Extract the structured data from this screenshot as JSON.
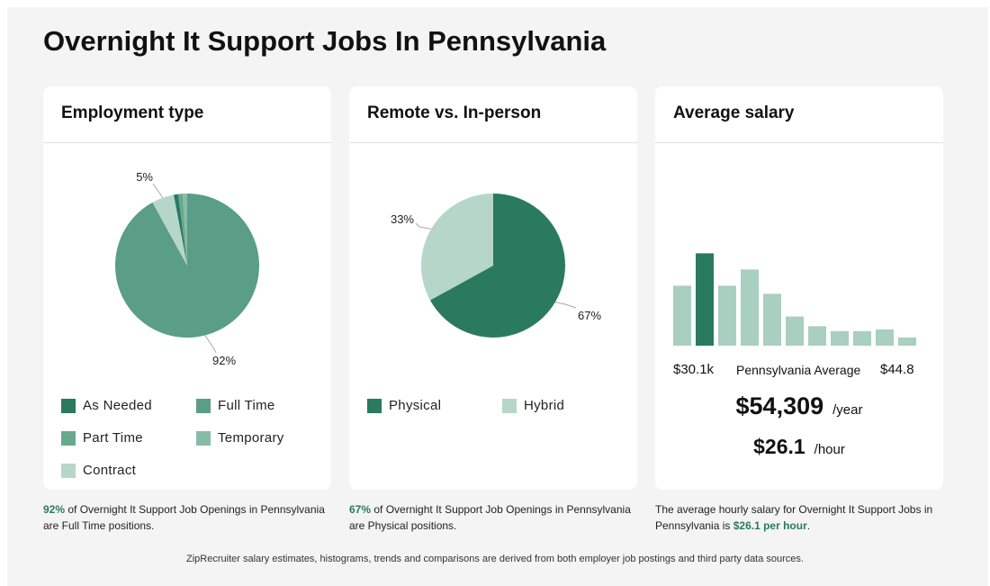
{
  "page": {
    "title": "Overnight It Support Jobs In Pennsylvania"
  },
  "chart_data": [
    {
      "type": "pie",
      "title": "Employment type",
      "slices": [
        {
          "label": "Full Time",
          "value": 92,
          "color": "#5a9e87"
        },
        {
          "label": "Contract",
          "value": 5,
          "color": "#b7d6ca"
        },
        {
          "label": "As Needed",
          "value": 1,
          "color": "#2a7a5f"
        },
        {
          "label": "Part Time",
          "value": 1,
          "color": "#6aa88f"
        },
        {
          "label": "Temporary",
          "value": 1,
          "color": "#88bba7"
        }
      ],
      "data_labels": [
        {
          "slice": "Contract",
          "text": "5%"
        },
        {
          "slice": "Full Time",
          "text": "92%"
        }
      ],
      "legend": [
        {
          "label": "As Needed",
          "color": "#2a7a5f"
        },
        {
          "label": "Full Time",
          "color": "#5a9e87"
        },
        {
          "label": "Part Time",
          "color": "#6aa88f"
        },
        {
          "label": "Temporary",
          "color": "#88bba7"
        },
        {
          "label": "Contract",
          "color": "#b7d6ca"
        }
      ]
    },
    {
      "type": "pie",
      "title": "Remote vs. In-person",
      "slices": [
        {
          "label": "Physical",
          "value": 67,
          "color": "#2a7a5f"
        },
        {
          "label": "Hybrid",
          "value": 33,
          "color": "#b7d6ca"
        }
      ],
      "data_labels": [
        {
          "slice": "Physical",
          "text": "67%"
        },
        {
          "slice": "Hybrid",
          "text": "33%"
        }
      ],
      "legend": [
        {
          "label": "Physical",
          "color": "#2a7a5f"
        },
        {
          "label": "Hybrid",
          "color": "#b7d6ca"
        }
      ]
    },
    {
      "type": "bar",
      "title": "Average salary",
      "values": [
        37,
        57,
        37,
        47,
        32,
        18,
        12,
        9,
        9,
        10,
        5
      ],
      "highlight_index": 1,
      "ylim": [
        0,
        60
      ],
      "bar_color": "#a8cfc0",
      "highlight_color": "#2a7a5f",
      "range_min_label": "$30.1k",
      "range_mid_label": "Pennsylvania Average",
      "range_max_label": "$44.8"
    }
  ],
  "salary": {
    "yearly": "$54,309",
    "yearly_unit": "/year",
    "hourly": "$26.1",
    "hourly_unit": "/hour"
  },
  "captions": {
    "employment_pct": "92%",
    "employment_text": " of Overnight It Support Job Openings in Pennsylvania are Full Time positions.",
    "remote_pct": "67%",
    "remote_text": " of Overnight It Support Job Openings in Pennsylvania are Physical positions.",
    "salary_text_a": "The average hourly salary for Overnight It Support Jobs in Pennsylvania is ",
    "salary_highlight": "$26.1 per hour",
    "salary_text_b": "."
  },
  "footer": "ZipRecruiter salary estimates, histograms, trends and comparisons are derived from both employer job postings and third party data sources."
}
